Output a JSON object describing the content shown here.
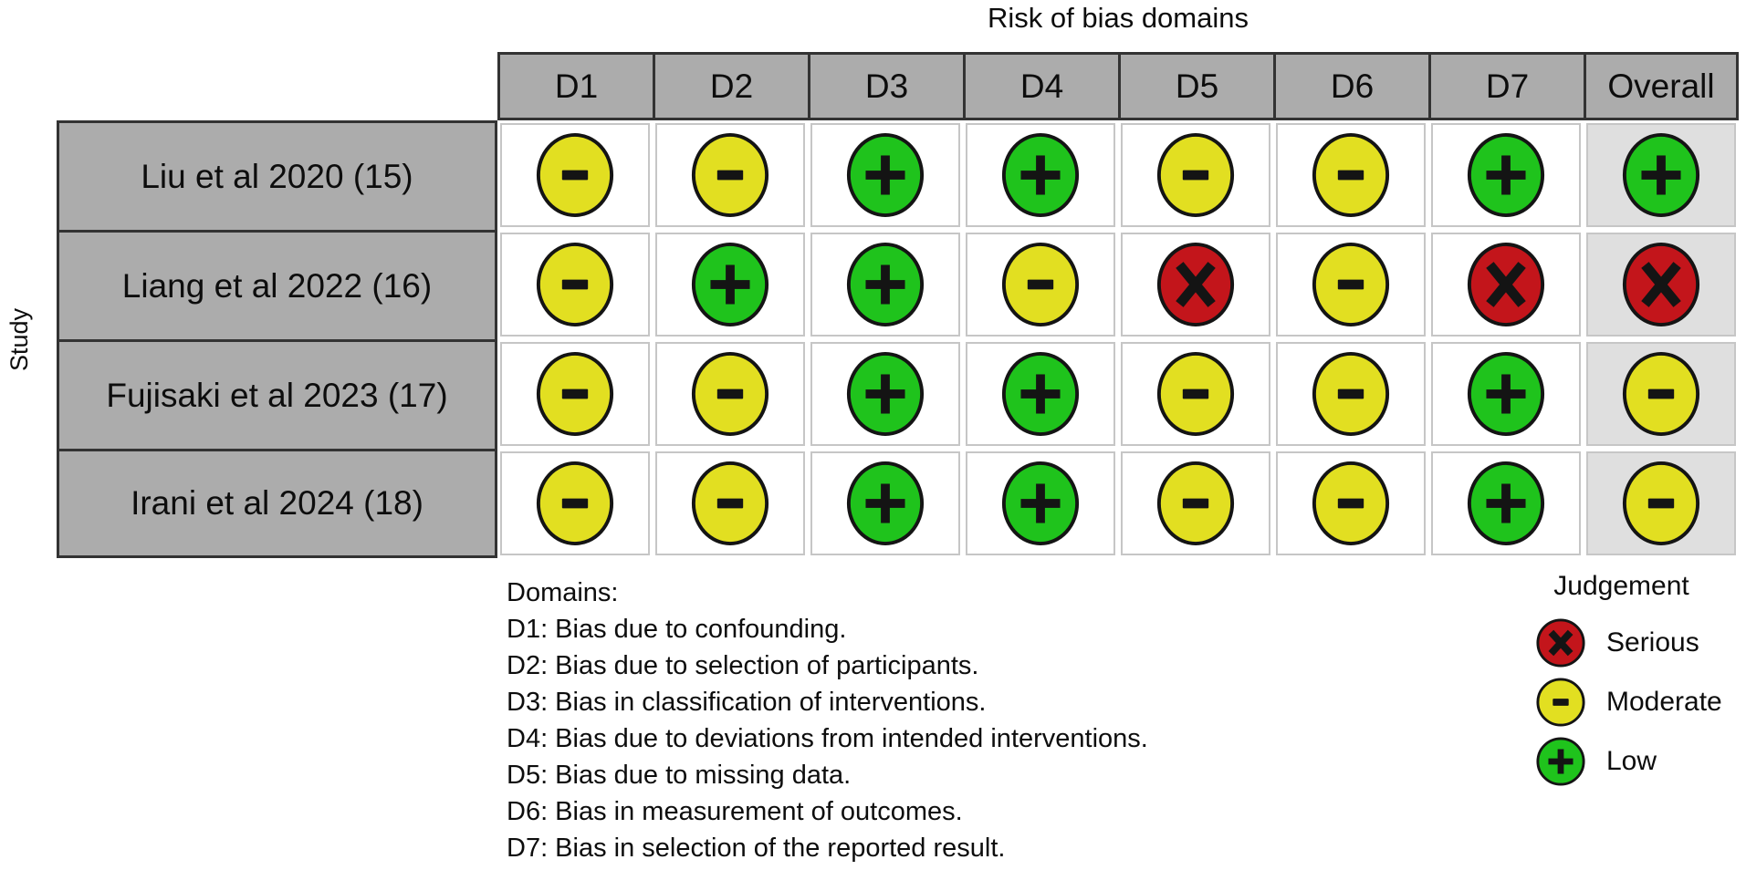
{
  "title": "Risk of bias domains",
  "y_axis_label": "Study",
  "columns": [
    "D1",
    "D2",
    "D3",
    "D4",
    "D5",
    "D6",
    "D7",
    "Overall"
  ],
  "studies": [
    "Liu et al 2020 (15)",
    "Liang et al 2022 (16)",
    "Fujisaki et al 2023 (17)",
    "Irani et al 2024 (18)"
  ],
  "judgements": [
    [
      "moderate",
      "moderate",
      "low",
      "low",
      "moderate",
      "moderate",
      "low",
      "low"
    ],
    [
      "moderate",
      "low",
      "low",
      "moderate",
      "serious",
      "moderate",
      "serious",
      "serious"
    ],
    [
      "moderate",
      "moderate",
      "low",
      "low",
      "moderate",
      "moderate",
      "low",
      "moderate"
    ],
    [
      "moderate",
      "moderate",
      "low",
      "low",
      "moderate",
      "moderate",
      "low",
      "moderate"
    ]
  ],
  "judgement_styles": {
    "low": {
      "label": "Low",
      "symbol": "plus",
      "color": "#1FC31C"
    },
    "moderate": {
      "label": "Moderate",
      "symbol": "minus",
      "color": "#E2DF21"
    },
    "serious": {
      "label": "Serious",
      "symbol": "x",
      "color": "#C3151B"
    }
  },
  "colors": {
    "header_bg": "#ACACAC",
    "overall_column_bg": "#DFDFDF",
    "dark_border": "#333333",
    "panel_border": "#C6C6C6",
    "symbol": "#141414"
  },
  "domains_note": {
    "heading": "Domains:",
    "items": [
      "D1: Bias due to confounding.",
      "D2: Bias due to selection of participants.",
      "D3: Bias in classification of interventions.",
      "D4: Bias due to deviations from intended interventions.",
      "D5: Bias due to missing data.",
      "D6: Bias in measurement of outcomes.",
      "D7: Bias in selection of the reported result."
    ]
  },
  "legend": {
    "title": "Judgement",
    "items": [
      {
        "judgement": "serious",
        "label": "Serious"
      },
      {
        "judgement": "moderate",
        "label": "Moderate"
      },
      {
        "judgement": "low",
        "label": "Low"
      }
    ]
  },
  "chart_data": {
    "type": "table",
    "title": "Risk of bias domains",
    "ylabel": "Study",
    "x_categories": [
      "D1",
      "D2",
      "D3",
      "D4",
      "D5",
      "D6",
      "D7",
      "Overall"
    ],
    "y_categories": [
      "Liu et al 2020 (15)",
      "Liang et al 2022 (16)",
      "Fujisaki et al 2023 (17)",
      "Irani et al 2024 (18)"
    ],
    "values": [
      [
        "Moderate",
        "Moderate",
        "Low",
        "Low",
        "Moderate",
        "Moderate",
        "Low",
        "Low"
      ],
      [
        "Moderate",
        "Low",
        "Low",
        "Moderate",
        "Serious",
        "Moderate",
        "Serious",
        "Serious"
      ],
      [
        "Moderate",
        "Moderate",
        "Low",
        "Low",
        "Moderate",
        "Moderate",
        "Low",
        "Moderate"
      ],
      [
        "Moderate",
        "Moderate",
        "Low",
        "Low",
        "Moderate",
        "Moderate",
        "Low",
        "Moderate"
      ]
    ],
    "legend_entries": [
      "Serious",
      "Moderate",
      "Low"
    ],
    "legend_position": "bottom-right",
    "grid": true
  }
}
